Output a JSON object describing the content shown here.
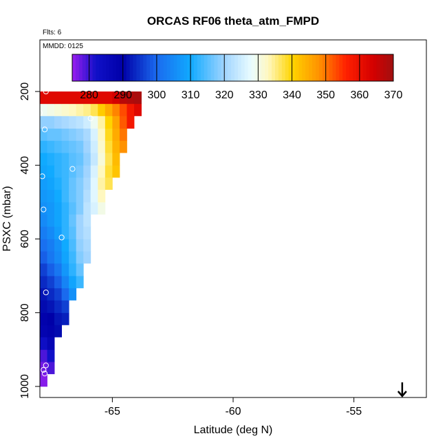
{
  "chart_data": {
    "type": "heatmap",
    "title": "ORCAS RF06 theta_atm_FMPD",
    "subtitle_flights": "Flts: 6",
    "date_label": "MMDD: 0125",
    "xlabel": "Latitude (deg N)",
    "ylabel": "PSXC (mbar)",
    "xlim": [
      -68.0,
      -52.0
    ],
    "ylim": [
      1030,
      60
    ],
    "x_ticks": [
      -65,
      -60,
      -55
    ],
    "x_tick_labels": [
      "-65",
      "-60",
      "-55"
    ],
    "y_ticks": [
      200,
      400,
      600,
      800,
      1000
    ],
    "y_tick_labels": [
      "200",
      "400",
      "600",
      "800",
      "1000"
    ],
    "colorbar": {
      "min": 275,
      "max": 370,
      "ticks": [
        280,
        290,
        300,
        310,
        320,
        330,
        340,
        350,
        360,
        370
      ],
      "tick_labels": [
        "280",
        "290",
        "300",
        "310",
        "320",
        "330",
        "340",
        "350",
        "360",
        "370"
      ],
      "stops": [
        {
          "value": 275,
          "color": "#9a1ef0"
        },
        {
          "value": 282,
          "color": "#1010c8"
        },
        {
          "value": 290,
          "color": "#0000a8"
        },
        {
          "value": 300,
          "color": "#1a6aee"
        },
        {
          "value": 310,
          "color": "#10aaff"
        },
        {
          "value": 320,
          "color": "#a0d4ff"
        },
        {
          "value": 328,
          "color": "#eafcff"
        },
        {
          "value": 333,
          "color": "#fff8c0"
        },
        {
          "value": 340,
          "color": "#ffd400"
        },
        {
          "value": 348,
          "color": "#ff9200"
        },
        {
          "value": 356,
          "color": "#ff2000"
        },
        {
          "value": 364,
          "color": "#d40000"
        },
        {
          "value": 370,
          "color": "#a01010"
        }
      ]
    },
    "column_edges": [
      -68.0,
      -67.7,
      -67.4,
      -67.1,
      -66.8,
      -66.5,
      -66.2,
      -65.9,
      -65.6,
      -65.3,
      -65.0,
      -64.7,
      -64.4,
      -64.1,
      -63.8
    ],
    "row_edges": [
      1000,
      966,
      933,
      900,
      866,
      833,
      800,
      766,
      733,
      700,
      666,
      633,
      600,
      566,
      533,
      500,
      466,
      433,
      400,
      366,
      333,
      300,
      266,
      233,
      200,
      166
    ],
    "rows": [
      [
        276
      ],
      [
        277,
        279
      ],
      [
        279,
        282
      ],
      [
        283,
        287
      ],
      [
        288,
        289,
        291
      ],
      [
        289,
        290,
        292,
        293
      ],
      [
        291,
        292,
        294,
        296
      ],
      [
        292,
        294,
        296,
        300,
        306
      ],
      [
        294,
        296,
        299,
        304,
        309,
        313
      ],
      [
        296,
        299,
        302,
        307,
        312,
        316
      ],
      [
        299,
        302,
        305,
        309,
        313,
        318,
        320
      ],
      [
        301,
        303,
        306,
        310,
        314,
        319,
        321
      ],
      [
        303,
        305,
        308,
        312,
        315,
        320,
        322
      ],
      [
        305,
        307,
        309,
        312,
        316,
        320,
        323
      ],
      [
        306,
        307,
        309,
        312,
        315,
        318,
        323,
        326,
        330
      ],
      [
        307,
        308,
        310,
        313,
        316,
        318,
        322,
        327,
        333
      ],
      [
        308,
        309,
        311,
        313,
        316,
        318,
        321,
        327,
        334,
        337
      ],
      [
        309,
        310,
        312,
        313,
        315,
        317,
        320,
        326,
        333,
        338,
        342
      ],
      [
        310,
        311,
        312,
        313,
        315,
        316,
        319,
        324,
        331,
        337,
        343
      ],
      [
        312,
        313,
        314,
        315,
        316,
        317,
        320,
        325,
        332,
        338,
        344,
        348
      ],
      [
        315,
        316,
        316,
        317,
        318,
        319,
        321,
        326,
        333,
        339,
        345,
        350
      ],
      [
        319,
        319,
        320,
        321,
        322,
        323,
        325,
        329,
        334,
        340,
        346,
        352,
        358
      ],
      [
        329,
        330,
        331,
        332,
        333,
        334,
        335,
        337,
        341,
        345,
        349,
        353,
        358,
        362
      ],
      [
        362,
        362,
        362,
        362,
        362,
        362,
        362,
        362,
        362,
        362,
        364,
        367,
        368,
        369
      ],
      []
    ],
    "observations": [
      {
        "lat": -67.85,
        "p": 185
      },
      {
        "lat": -67.75,
        "p": 200
      },
      {
        "lat": -65.2,
        "p": 192
      },
      {
        "lat": -64.6,
        "p": 178
      },
      {
        "lat": -64.5,
        "p": 178
      },
      {
        "lat": -63.9,
        "p": 178
      },
      {
        "lat": -63.8,
        "p": 178
      },
      {
        "lat": -68.0,
        "p": 258
      },
      {
        "lat": -65.9,
        "p": 273
      },
      {
        "lat": -67.8,
        "p": 303
      },
      {
        "lat": -66.65,
        "p": 410
      },
      {
        "lat": -67.9,
        "p": 430
      },
      {
        "lat": -67.85,
        "p": 520
      },
      {
        "lat": -67.1,
        "p": 596
      },
      {
        "lat": -67.75,
        "p": 745
      },
      {
        "lat": -67.75,
        "p": 943
      },
      {
        "lat": -67.85,
        "p": 955
      },
      {
        "lat": -67.8,
        "p": 965
      }
    ],
    "arrow_lat": -53.0,
    "arrow_direction": "down"
  }
}
